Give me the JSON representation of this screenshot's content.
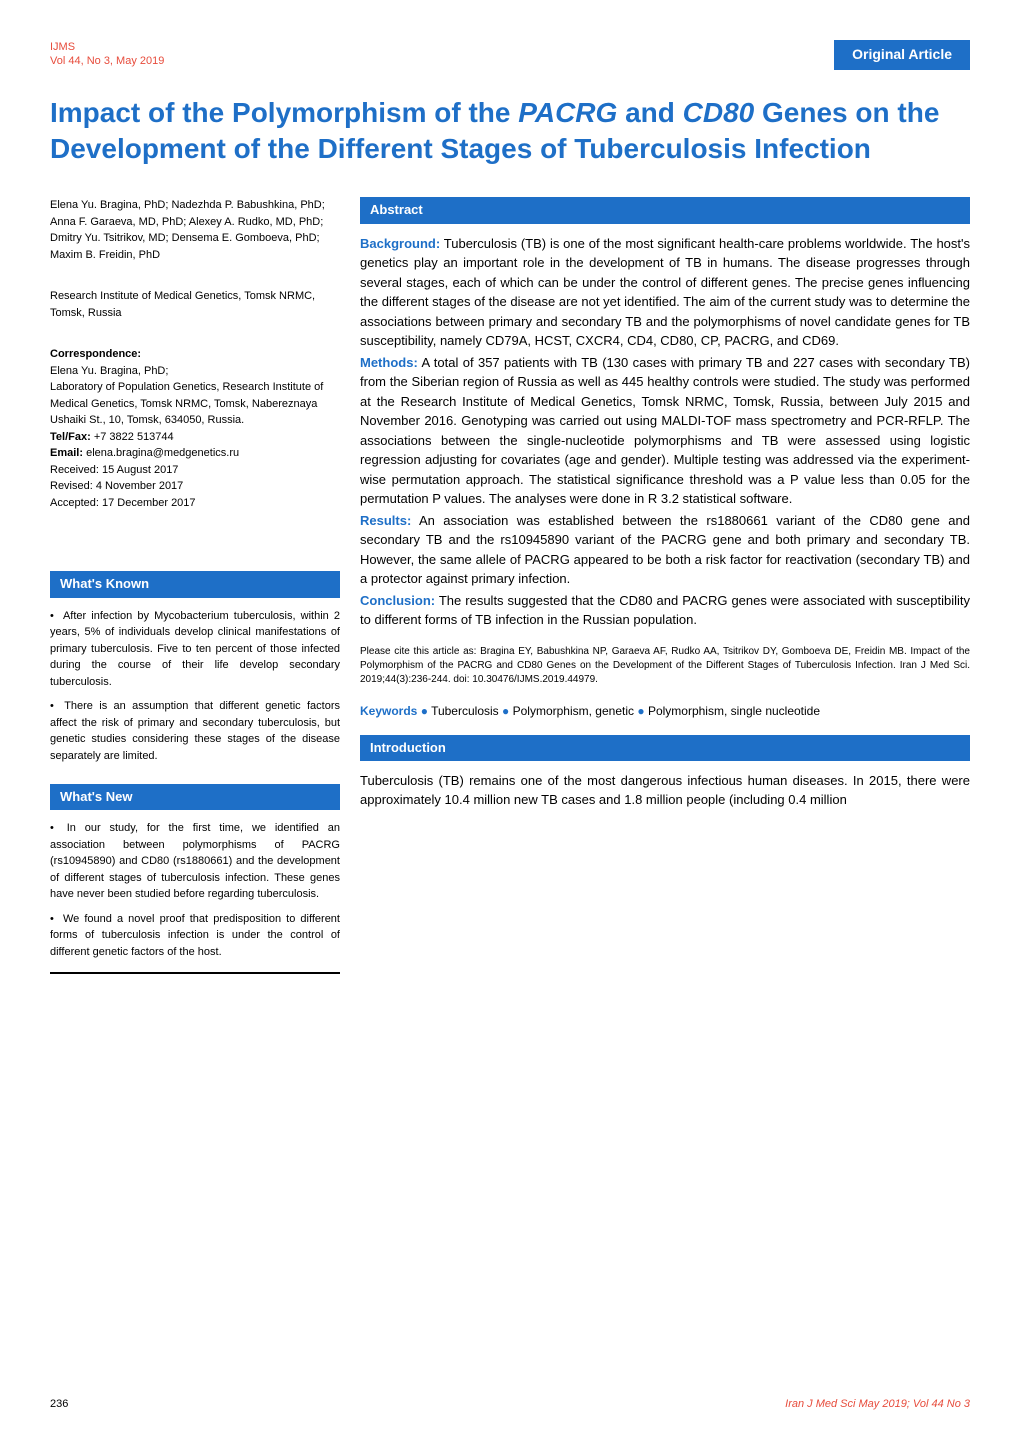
{
  "colors": {
    "blue": "#1e6fc7",
    "red": "#e74c3c",
    "white": "#ffffff",
    "black": "#000000"
  },
  "header": {
    "journal_name": "IJMS",
    "journal_vol": "Vol 44, No 3, May 2019",
    "article_type": "Original Article"
  },
  "title": "Impact of the Polymorphism of the PACRG and CD80 Genes on the Development of the Different Stages of Tuberculosis Infection",
  "title_parts": {
    "p1": "Impact of the Polymorphism of the ",
    "gene1": "PACRG",
    "p2": " and ",
    "gene2": "CD80",
    "p3": " Genes on the Development of the Different Stages of Tuberculosis Infection"
  },
  "authors": "Elena Yu. Bragina, PhD; Nadezhda P. Babushkina, PhD; Anna F. Garaeva, MD, PhD; Alexey A. Rudko, MD, PhD; Dmitry Yu. Tsitrikov, MD; Densema E. Gomboeva, PhD; Maxim B. Freidin, PhD",
  "affiliation": "Research Institute of Medical Genetics, Tomsk NRMC, Tomsk, Russia",
  "correspondence": {
    "heading": "Correspondence:",
    "name": "Elena Yu. Bragina, PhD;",
    "address": "Laboratory of Population Genetics, Research Institute of Medical Genetics, Tomsk NRMC, Tomsk, Nabereznaya Ushaiki St., 10, Tomsk, 634050, Russia.",
    "telfax_label": "Tel/Fax:",
    "telfax": " +7 3822 513744",
    "email_label": "Email:",
    "email": " elena.bragina@medgenetics.ru",
    "received": "Received: 15 August 2017",
    "revised": "Revised: 4 November 2017",
    "accepted": "Accepted: 17 December 2017"
  },
  "whats_known": {
    "header": "What's Known",
    "bullets": [
      "After infection by Mycobacterium tuberculosis, within 2 years, 5% of individuals develop clinical manifestations of primary tuberculosis. Five to ten percent of those infected during the course of their life develop secondary tuberculosis.",
      "There is an assumption that different genetic factors affect the risk of primary and secondary tuberculosis, but genetic studies considering these stages of the disease separately are limited."
    ]
  },
  "whats_new": {
    "header": "What's New",
    "bullets": [
      "In our study, for the first time, we identified an association between polymorphisms of PACRG (rs10945890) and CD80 (rs1880661) and the development of different stages of tuberculosis infection. These genes have never been studied before regarding tuberculosis.",
      "We found a novel proof that predisposition to different forms of tuberculosis infection is under the control of different genetic factors of the host."
    ]
  },
  "abstract": {
    "header": "Abstract",
    "sections": [
      {
        "label": "Background:",
        "text": " Tuberculosis (TB) is one of the most significant health-care problems worldwide. The host's genetics play an important role in the development of TB in humans. The disease progresses through several stages, each of which can be under the control of different genes. The precise genes influencing the different stages of the disease are not yet identified. The aim of the current study was to determine the associations between primary and secondary TB and the polymorphisms of novel candidate genes for TB susceptibility, namely CD79A, HCST, CXCR4, CD4, CD80, CP, PACRG, and CD69."
      },
      {
        "label": "Methods:",
        "text": " A total of 357 patients with TB (130 cases with primary TB and 227 cases with secondary TB) from the Siberian region of Russia as well as 445 healthy controls were studied. The study was performed at the Research Institute of Medical Genetics, Tomsk NRMC, Tomsk, Russia, between July 2015 and November 2016. Genotyping was carried out using MALDI-TOF mass spectrometry and PCR-RFLP. The associations between the single-nucleotide polymorphisms and TB were assessed using logistic regression adjusting for covariates (age and gender). Multiple testing was addressed via the experiment-wise permutation approach. The statistical significance threshold was a P value less than 0.05 for the permutation P values. The analyses were done in R 3.2 statistical software."
      },
      {
        "label": "Results:",
        "text": " An association was established between the rs1880661 variant of the CD80 gene and secondary TB and the rs10945890 variant of the PACRG gene and both primary and secondary TB. However, the same allele of PACRG appeared to be both a risk factor for reactivation (secondary TB) and a protector against primary infection."
      },
      {
        "label": "Conclusion:",
        "text": " The results suggested that the CD80 and PACRG genes were associated with susceptibility to different forms of TB infection in the Russian population."
      }
    ],
    "citation": "Please cite this article as: Bragina EY, Babushkina NP, Garaeva AF, Rudko AA, Tsitrikov DY, Gomboeva DE, Freidin MB. Impact of the Polymorphism of the PACRG and CD80 Genes on the Development of the Different Stages of Tuberculosis Infection. Iran J Med Sci. 2019;44(3):236-244. doi: 10.30476/IJMS.2019.44979.",
    "keywords_label": "Keywords",
    "keywords": [
      "Tuberculosis",
      "Polymorphism, genetic",
      "Polymorphism, single nucleotide"
    ]
  },
  "introduction": {
    "header": "Introduction",
    "body": "Tuberculosis (TB) remains one of the most dangerous infectious human diseases. In 2015, there were approximately 10.4 million new TB cases and 1.8 million people (including 0.4 million"
  },
  "footer": {
    "page": "236",
    "right": "Iran J Med Sci May 2019; Vol 44 No 3"
  }
}
